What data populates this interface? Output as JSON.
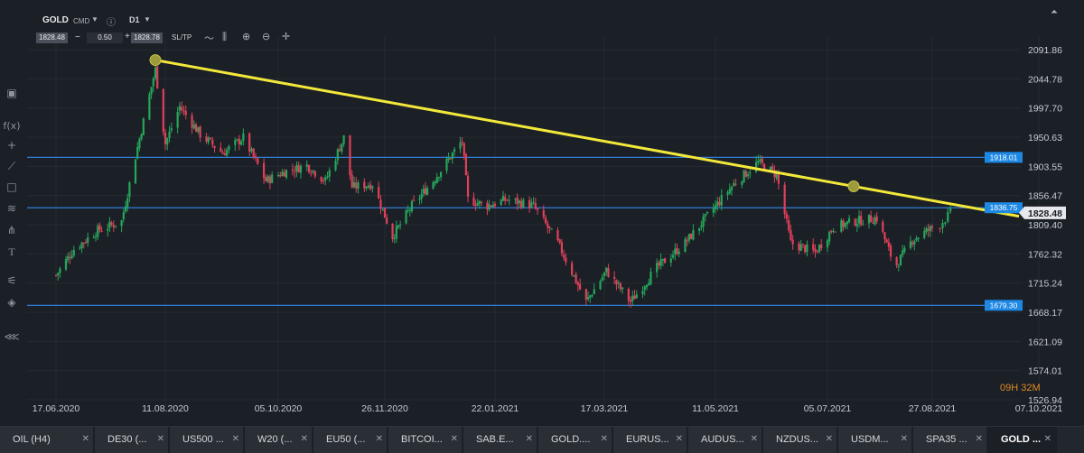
{
  "toolbar": {
    "symbol": "GOLD",
    "cmd_label": "CMD",
    "timeframe": "D1",
    "bid": "1828.48",
    "lot": "0.50",
    "ask": "1828.78",
    "minus": "−",
    "plus": "+",
    "sltp_label": "SL/TP"
  },
  "timer": "09H 32M",
  "colors": {
    "background": "#1b1f26",
    "bull": "#26a65b",
    "bear": "#e0405a",
    "trendline": "#f3e93a",
    "hline": "#2f7fd6",
    "label_blue": "#1e88e5",
    "timer": "#e08a25"
  },
  "tabs": [
    {
      "label": "OIL (H4)"
    },
    {
      "label": "DE30 (..."
    },
    {
      "label": "US500 ..."
    },
    {
      "label": "W20 (..."
    },
    {
      "label": "EU50 (..."
    },
    {
      "label": "BITCOI..."
    },
    {
      "label": "SAB.E..."
    },
    {
      "label": "GOLD...."
    },
    {
      "label": "EURUS..."
    },
    {
      "label": "AUDUS..."
    },
    {
      "label": "NZDUS..."
    },
    {
      "label": "USDM..."
    },
    {
      "label": "SPA35 ..."
    },
    {
      "label": "GOLD ..."
    }
  ],
  "chart_data": {
    "type": "candlestick",
    "symbol": "GOLD",
    "timeframe": "D1",
    "y_axis_ticks": [
      "2091.86",
      "2044.78",
      "1997.70",
      "1950.63",
      "1903.55",
      "1856.47",
      "1809.40",
      "1762.32",
      "1715.24",
      "1668.17",
      "1621.09",
      "1574.01",
      "1526.94"
    ],
    "ylim": [
      1526.94,
      2091.86
    ],
    "x_axis_ticks": [
      "17.06.2020",
      "11.08.2020",
      "05.10.2020",
      "26.11.2020",
      "22.01.2021",
      "17.03.2021",
      "11.05.2021",
      "05.07.2021",
      "27.08.2021",
      "07.10.2021"
    ],
    "current_price": {
      "value": "1828.48"
    },
    "horizontal_lines": [
      {
        "value": 1918.01,
        "label": "1918.01"
      },
      {
        "value": 1836.75,
        "label": "1836.75"
      },
      {
        "value": 1679.3,
        "label": "1679.30"
      }
    ],
    "trendline": {
      "from": {
        "date": "2020-08-06",
        "price": 2075
      },
      "to": {
        "date": "2021-09-07",
        "price": 1840
      }
    },
    "close_path": [
      [
        "2020-06-17",
        1728
      ],
      [
        "2020-06-26",
        1770
      ],
      [
        "2020-07-08",
        1800
      ],
      [
        "2020-07-20",
        1815
      ],
      [
        "2020-07-27",
        1920
      ],
      [
        "2020-08-06",
        2060
      ],
      [
        "2020-08-11",
        1940
      ],
      [
        "2020-08-18",
        2000
      ],
      [
        "2020-08-28",
        1955
      ],
      [
        "2020-09-08",
        1925
      ],
      [
        "2020-09-18",
        1950
      ],
      [
        "2020-09-29",
        1880
      ],
      [
        "2020-10-08",
        1895
      ],
      [
        "2020-10-19",
        1905
      ],
      [
        "2020-10-28",
        1880
      ],
      [
        "2020-11-06",
        1950
      ],
      [
        "2020-11-10",
        1870
      ],
      [
        "2020-11-20",
        1875
      ],
      [
        "2020-11-30",
        1790
      ],
      [
        "2020-12-10",
        1840
      ],
      [
        "2020-12-21",
        1880
      ],
      [
        "2021-01-05",
        1945
      ],
      [
        "2021-01-08",
        1850
      ],
      [
        "2021-01-18",
        1840
      ],
      [
        "2021-01-28",
        1850
      ],
      [
        "2021-02-10",
        1840
      ],
      [
        "2021-02-22",
        1780
      ],
      [
        "2021-03-08",
        1685
      ],
      [
        "2021-03-18",
        1735
      ],
      [
        "2021-03-30",
        1685
      ],
      [
        "2021-04-12",
        1740
      ],
      [
        "2021-04-26",
        1780
      ],
      [
        "2021-05-10",
        1835
      ],
      [
        "2021-05-20",
        1875
      ],
      [
        "2021-06-01",
        1910
      ],
      [
        "2021-06-10",
        1890
      ],
      [
        "2021-06-17",
        1780
      ],
      [
        "2021-06-29",
        1765
      ],
      [
        "2021-07-08",
        1805
      ],
      [
        "2021-07-19",
        1815
      ],
      [
        "2021-07-30",
        1820
      ],
      [
        "2021-08-06",
        1760
      ],
      [
        "2021-08-09",
        1745
      ],
      [
        "2021-08-17",
        1785
      ],
      [
        "2021-08-30",
        1810
      ],
      [
        "2021-09-03",
        1828
      ]
    ]
  }
}
